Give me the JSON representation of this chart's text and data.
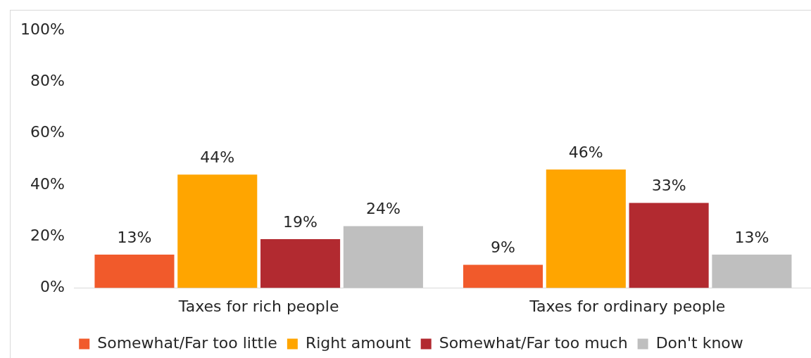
{
  "chart_data": {
    "type": "bar",
    "categories": [
      "Taxes for rich people",
      "Taxes for ordinary people"
    ],
    "series": [
      {
        "name": "Somewhat/Far too little",
        "color": "#f15a2b",
        "values": [
          13,
          9
        ],
        "value_labels": [
          "13%",
          "9%"
        ]
      },
      {
        "name": "Right amount",
        "color": "#ffa500",
        "values": [
          44,
          46
        ],
        "value_labels": [
          "44%",
          "46%"
        ]
      },
      {
        "name": "Somewhat/Far too much",
        "color": "#b22a30",
        "values": [
          19,
          33
        ],
        "value_labels": [
          "19%",
          "33%"
        ]
      },
      {
        "name": "Don't know",
        "color": "#bfbfbf",
        "values": [
          24,
          13
        ],
        "value_labels": [
          "24%",
          "13%"
        ]
      }
    ],
    "ylim": [
      0,
      100
    ],
    "yticks": [
      {
        "value": 0,
        "label": "0%"
      },
      {
        "value": 20,
        "label": "20%"
      },
      {
        "value": 40,
        "label": "40%"
      },
      {
        "value": 60,
        "label": "60%"
      },
      {
        "value": 80,
        "label": "80%"
      },
      {
        "value": 100,
        "label": "100%"
      }
    ],
    "grid": false,
    "legend": "bottom"
  }
}
